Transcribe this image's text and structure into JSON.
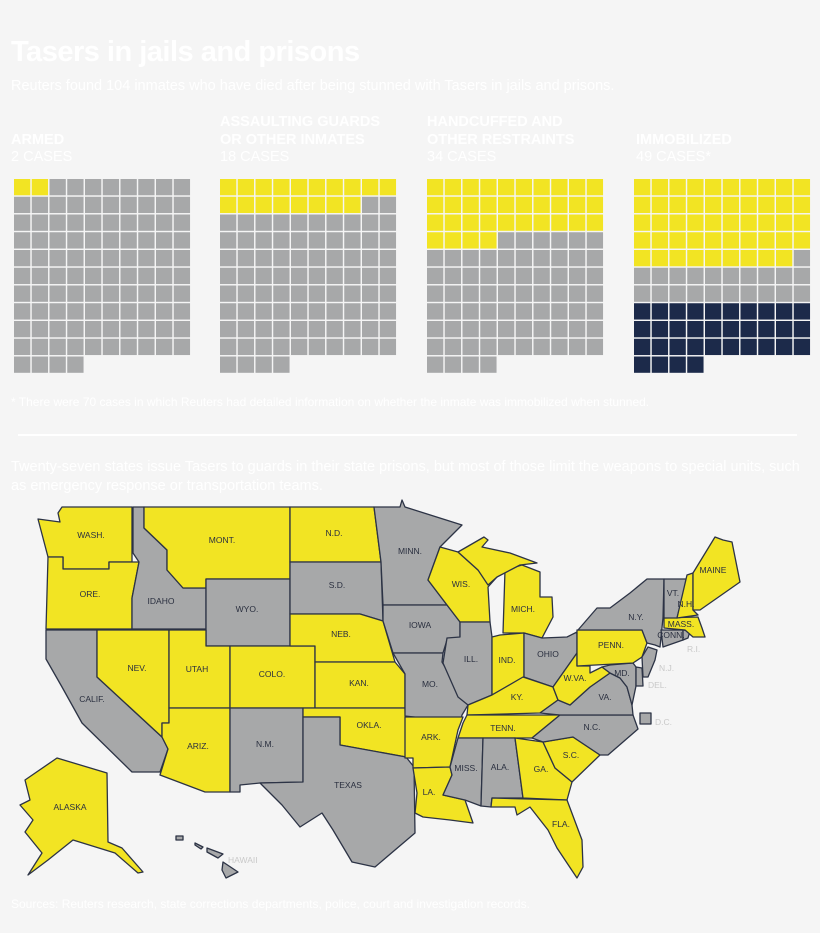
{
  "header": {
    "title": "Tasers in jails and prisons",
    "subtitle": "Reuters found 104 inmates who have died after being stunned with Tasers in jails and prisons."
  },
  "colors": {
    "yellow": "#f2e423",
    "gray": "#a7a8a9",
    "navy": "#1c2a4a",
    "stroke": "#2c3345",
    "background": "#f5f5f5"
  },
  "chart_data": [
    {
      "type": "waffle",
      "total_per_panel": 104,
      "panels": [
        {
          "line1": "",
          "line2": "ARMED",
          "cases": "2 CASES",
          "segments": [
            {
              "name": "Armed",
              "count": 2,
              "color": "yellow"
            },
            {
              "name": "Other",
              "count": 102,
              "color": "gray"
            }
          ]
        },
        {
          "line1": "ASSAULTING GUARDS",
          "line2": "OR OTHER INMATES",
          "cases": "18 CASES",
          "segments": [
            {
              "name": "Assaulting",
              "count": 18,
              "color": "yellow"
            },
            {
              "name": "Other",
              "count": 86,
              "color": "gray"
            }
          ]
        },
        {
          "line1": "HANDCUFFED AND",
          "line2": "OTHER RESTRAINTS",
          "cases": "34 CASES",
          "segments": [
            {
              "name": "Restrained",
              "count": 34,
              "color": "yellow"
            },
            {
              "name": "Other",
              "count": 70,
              "color": "gray"
            }
          ]
        },
        {
          "line1": "",
          "line2": "IMMOBILIZED",
          "cases": "49 CASES*",
          "segments": [
            {
              "name": "Immobilized",
              "count": 49,
              "color": "yellow"
            },
            {
              "name": "Not immobilized",
              "count": 21,
              "color": "gray"
            },
            {
              "name": "No detailed information",
              "count": 34,
              "color": "navy"
            }
          ]
        }
      ],
      "footnote": "* There were 70 cases in which Reuters had detailed information on whether the inmate was immobilized when stunned."
    },
    {
      "type": "choropleth",
      "intro": "Twenty-seven states issue Tasers to guards in their state prisons, but most of those limit the weapons to special units, such as emergency response or transportation teams.",
      "states": [
        {
          "id": "WA",
          "label": "WASH.",
          "tasers": true
        },
        {
          "id": "OR",
          "label": "ORE.",
          "tasers": true
        },
        {
          "id": "CA",
          "label": "CALIF.",
          "tasers": false
        },
        {
          "id": "ID",
          "label": "IDAHO",
          "tasers": false
        },
        {
          "id": "NV",
          "label": "NEV.",
          "tasers": true
        },
        {
          "id": "MT",
          "label": "MONT.",
          "tasers": true
        },
        {
          "id": "WY",
          "label": "WYO.",
          "tasers": false
        },
        {
          "id": "UT",
          "label": "UTAH",
          "tasers": true
        },
        {
          "id": "AZ",
          "label": "ARIZ.",
          "tasers": true
        },
        {
          "id": "CO",
          "label": "COLO.",
          "tasers": true
        },
        {
          "id": "NM",
          "label": "N.M.",
          "tasers": false
        },
        {
          "id": "ND",
          "label": "N.D.",
          "tasers": true
        },
        {
          "id": "SD",
          "label": "S.D.",
          "tasers": false
        },
        {
          "id": "NE",
          "label": "NEB.",
          "tasers": true
        },
        {
          "id": "KS",
          "label": "KAN.",
          "tasers": true
        },
        {
          "id": "OK",
          "label": "OKLA.",
          "tasers": true
        },
        {
          "id": "TX",
          "label": "TEXAS",
          "tasers": false
        },
        {
          "id": "MN",
          "label": "MINN.",
          "tasers": false
        },
        {
          "id": "IA",
          "label": "IOWA",
          "tasers": false
        },
        {
          "id": "MO",
          "label": "MO.",
          "tasers": false
        },
        {
          "id": "AR",
          "label": "ARK.",
          "tasers": true
        },
        {
          "id": "LA",
          "label": "LA.",
          "tasers": true
        },
        {
          "id": "WI",
          "label": "WIS.",
          "tasers": true
        },
        {
          "id": "MI",
          "label": "MICH.",
          "tasers": true
        },
        {
          "id": "IL",
          "label": "ILL.",
          "tasers": false
        },
        {
          "id": "IN",
          "label": "IND.",
          "tasers": true
        },
        {
          "id": "OH",
          "label": "OHIO",
          "tasers": false
        },
        {
          "id": "KY",
          "label": "KY.",
          "tasers": true
        },
        {
          "id": "TN",
          "label": "TENN.",
          "tasers": true
        },
        {
          "id": "MS",
          "label": "MISS.",
          "tasers": false
        },
        {
          "id": "AL",
          "label": "ALA.",
          "tasers": false
        },
        {
          "id": "GA",
          "label": "GA.",
          "tasers": true
        },
        {
          "id": "FL",
          "label": "FLA.",
          "tasers": true
        },
        {
          "id": "SC",
          "label": "S.C.",
          "tasers": true
        },
        {
          "id": "NC",
          "label": "N.C.",
          "tasers": false
        },
        {
          "id": "VA",
          "label": "VA.",
          "tasers": false
        },
        {
          "id": "WV",
          "label": "W.VA.",
          "tasers": true
        },
        {
          "id": "MD",
          "label": "MD.",
          "tasers": false
        },
        {
          "id": "DE",
          "label": "DEL.",
          "tasers": false
        },
        {
          "id": "PA",
          "label": "PENN.",
          "tasers": true
        },
        {
          "id": "NJ",
          "label": "N.J.",
          "tasers": false
        },
        {
          "id": "NY",
          "label": "N.Y.",
          "tasers": false
        },
        {
          "id": "CT",
          "label": "CONN.",
          "tasers": false
        },
        {
          "id": "RI",
          "label": "R.I.",
          "tasers": false
        },
        {
          "id": "MA",
          "label": "MASS.",
          "tasers": true
        },
        {
          "id": "VT",
          "label": "VT.",
          "tasers": false
        },
        {
          "id": "NH",
          "label": "N.H.",
          "tasers": true
        },
        {
          "id": "ME",
          "label": "MAINE",
          "tasers": true
        },
        {
          "id": "DC",
          "label": "D.C.",
          "tasers": false
        },
        {
          "id": "AK",
          "label": "ALASKA",
          "tasers": true
        },
        {
          "id": "HI",
          "label": "HAWAII",
          "tasers": false
        }
      ]
    }
  ],
  "sources": "Sources: Reuters research, state corrections departments, police, court and investigation records."
}
